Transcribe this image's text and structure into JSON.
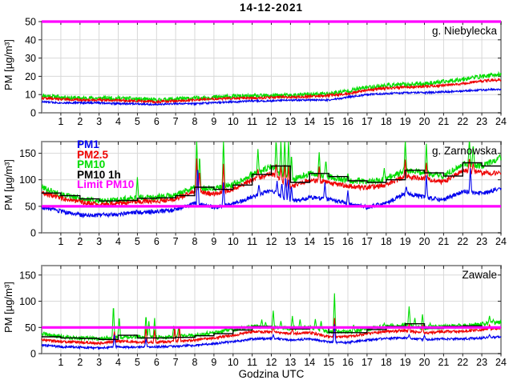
{
  "title": "14-12-2021",
  "xlabel": "Godzina UTC",
  "ylabel": "PM [µg/m³]",
  "colors": {
    "pm1": "#0000ee",
    "pm25": "#ee0000",
    "pm10": "#00dd00",
    "pm10_1h": "#000000",
    "limit": "#ff00ff",
    "grid": "#d8d8d8",
    "frame": "#8a8a8a",
    "tick": "#222222"
  },
  "legend": {
    "items": [
      {
        "label": "PM1",
        "color": "#0000ee"
      },
      {
        "label": "PM2.5",
        "color": "#ee0000"
      },
      {
        "label": "PM10",
        "color": "#00dd00"
      },
      {
        "label": "PM10 1h",
        "color": "#000000"
      },
      {
        "label": "Limit PM10",
        "color": "#ff00ff"
      }
    ]
  },
  "chart_data": [
    {
      "type": "line",
      "station": "g. Niebylecka",
      "xlim": [
        0,
        24
      ],
      "xticks": [
        1,
        2,
        3,
        4,
        5,
        6,
        7,
        8,
        9,
        10,
        11,
        12,
        13,
        14,
        15,
        16,
        17,
        18,
        19,
        20,
        21,
        22,
        23,
        24
      ],
      "ylim": [
        0,
        50
      ],
      "yticks": [
        0,
        10,
        20,
        30,
        40,
        50
      ],
      "limit": {
        "name": "Limit PM10",
        "value": 50,
        "color": "#ff00ff"
      },
      "series": [
        {
          "name": "PM10",
          "color": "#00dd00",
          "noise": 1.2,
          "seed": 11,
          "anchors": [
            9.5,
            8.5,
            8,
            8,
            8,
            7.5,
            7,
            7.5,
            8,
            8.5,
            9,
            9,
            9.5,
            9.5,
            10,
            10.5,
            12,
            14,
            15,
            15.5,
            16,
            17,
            18.5,
            20,
            21
          ],
          "spikes": []
        },
        {
          "name": "PM2.5",
          "color": "#ee0000",
          "noise": 0.7,
          "seed": 22,
          "anchors": [
            8,
            7.5,
            7,
            7,
            7,
            6.5,
            6,
            6.5,
            7,
            7.5,
            8,
            8,
            8.5,
            8.5,
            9,
            9.5,
            10.5,
            12.5,
            13.5,
            14,
            14.5,
            15,
            16,
            17.5,
            18
          ],
          "spikes": []
        },
        {
          "name": "PM1",
          "color": "#0000ee",
          "noise": 0.5,
          "seed": 33,
          "anchors": [
            6,
            5.5,
            5.5,
            5.5,
            5,
            5,
            4.5,
            5,
            5,
            5.5,
            6,
            6.5,
            6.5,
            7,
            7,
            7,
            8.5,
            10,
            10.5,
            11,
            11,
            11.5,
            12,
            12.5,
            13
          ],
          "spikes": []
        }
      ]
    },
    {
      "type": "line",
      "station": "g. Zarnowska",
      "xlim": [
        0,
        24
      ],
      "xticks": [
        1,
        2,
        3,
        4,
        5,
        6,
        7,
        8,
        9,
        10,
        11,
        12,
        13,
        14,
        15,
        16,
        17,
        18,
        19,
        20,
        21,
        22,
        23,
        24
      ],
      "ylim": [
        0,
        172
      ],
      "yticks": [
        0,
        50,
        100,
        150
      ],
      "limit": {
        "name": "Limit PM10",
        "value": 50,
        "color": "#ff00ff"
      },
      "hourly": {
        "name": "PM10 1h",
        "color": "#000000",
        "values": [
          75,
          70,
          64,
          60,
          61,
          65,
          66,
          70,
          86,
          82,
          90,
          110,
          126,
          95,
          112,
          106,
          98,
          95,
          100,
          118,
          113,
          107,
          132,
          126
        ]
      },
      "series": [
        {
          "name": "PM10",
          "color": "#00dd00",
          "noise": 6,
          "seed": 101,
          "anchors": [
            86,
            72,
            64,
            60,
            62,
            66,
            67,
            71,
            86,
            83,
            91,
            110,
            124,
            97,
            112,
            106,
            99,
            96,
            101,
            118,
            113,
            107,
            130,
            126,
            142
          ],
          "spikes": [
            [
              5.0,
              105
            ],
            [
              8.1,
              178
            ],
            [
              8.25,
              148
            ],
            [
              9.5,
              178
            ],
            [
              11.3,
              158
            ],
            [
              12.25,
              178
            ],
            [
              12.5,
              172
            ],
            [
              12.7,
              178
            ],
            [
              12.9,
              176
            ],
            [
              13.05,
              150
            ],
            [
              14.5,
              152
            ],
            [
              14.85,
              138
            ],
            [
              16.0,
              112
            ],
            [
              17.9,
              122
            ],
            [
              19.0,
              175
            ],
            [
              20.1,
              168
            ],
            [
              22.35,
              178
            ],
            [
              22.55,
              168
            ],
            [
              23.9,
              145
            ]
          ]
        },
        {
          "name": "PM2.5",
          "color": "#ee0000",
          "noise": 4.5,
          "seed": 102,
          "anchors": [
            76,
            66,
            58,
            54,
            56,
            59,
            60,
            64,
            79,
            73,
            82,
            99,
            112,
            86,
            100,
            94,
            88,
            85,
            90,
            106,
            102,
            96,
            118,
            113,
            112
          ],
          "spikes": [
            [
              8.1,
              140
            ],
            [
              8.25,
              118
            ],
            [
              9.5,
              130
            ],
            [
              11.3,
              120
            ],
            [
              12.25,
              132
            ],
            [
              12.5,
              125
            ],
            [
              12.7,
              128
            ],
            [
              12.9,
              126
            ],
            [
              14.5,
              125
            ],
            [
              19.0,
              138
            ],
            [
              20.1,
              132
            ],
            [
              22.35,
              142
            ],
            [
              22.55,
              132
            ],
            [
              23.9,
              115
            ]
          ]
        },
        {
          "name": "PM1",
          "color": "#0000ee",
          "noise": 4,
          "seed": 103,
          "anchors": [
            48,
            40,
            34,
            33,
            35,
            39,
            40,
            43,
            56,
            48,
            54,
            68,
            80,
            58,
            67,
            64,
            55,
            48,
            56,
            74,
            67,
            62,
            78,
            74,
            84
          ],
          "spikes": [
            [
              8.15,
              128
            ],
            [
              9.5,
              95
            ],
            [
              11.35,
              92
            ],
            [
              12.3,
              98
            ],
            [
              12.55,
              95
            ],
            [
              12.75,
              108
            ],
            [
              12.9,
              100
            ],
            [
              13.05,
              90
            ],
            [
              14.8,
              95
            ],
            [
              16.0,
              80
            ],
            [
              19.05,
              88
            ],
            [
              20.1,
              108
            ],
            [
              22.4,
              122
            ],
            [
              23.9,
              85
            ]
          ]
        }
      ]
    },
    {
      "type": "line",
      "station": "Zawale",
      "xlim": [
        0,
        24
      ],
      "xticks": [
        1,
        2,
        3,
        4,
        5,
        6,
        7,
        8,
        9,
        10,
        11,
        12,
        13,
        14,
        15,
        16,
        17,
        18,
        19,
        20,
        21,
        22,
        23,
        24
      ],
      "ylim": [
        0,
        168
      ],
      "yticks": [
        0,
        50,
        100,
        150
      ],
      "limit": {
        "name": "Limit PM10",
        "value": 50,
        "color": "#ff00ff"
      },
      "hourly": {
        "name": "PM10 1h",
        "color": "#000000",
        "values": [
          32,
          30,
          29,
          27,
          35,
          30,
          30,
          31,
          34,
          38,
          45,
          52,
          50,
          47,
          50,
          40,
          40,
          46,
          52,
          57,
          48,
          52,
          53,
          50
        ]
      },
      "series": [
        {
          "name": "PM10",
          "color": "#00dd00",
          "noise": 4,
          "seed": 201,
          "anchors": [
            38,
            32,
            30,
            28,
            32,
            32,
            31,
            32,
            35,
            40,
            46,
            52,
            50,
            48,
            50,
            42,
            41,
            47,
            52,
            55,
            49,
            52,
            52,
            56,
            60
          ],
          "spikes": [
            [
              3.75,
              95
            ],
            [
              4.05,
              72
            ],
            [
              5.45,
              75
            ],
            [
              5.6,
              62
            ],
            [
              5.9,
              68
            ],
            [
              6.9,
              53
            ],
            [
              7.15,
              50
            ],
            [
              9.6,
              46
            ],
            [
              11.5,
              65
            ],
            [
              11.7,
              60
            ],
            [
              12.1,
              82
            ],
            [
              12.5,
              62
            ],
            [
              13.1,
              72
            ],
            [
              13.5,
              65
            ],
            [
              14.3,
              66
            ],
            [
              14.6,
              62
            ],
            [
              15.3,
              115
            ],
            [
              16.3,
              55
            ],
            [
              17.9,
              58
            ],
            [
              19.2,
              90
            ],
            [
              19.5,
              68
            ],
            [
              19.9,
              75
            ],
            [
              20.3,
              58
            ],
            [
              21.8,
              57
            ],
            [
              23.4,
              72
            ],
            [
              23.6,
              65
            ]
          ]
        },
        {
          "name": "PM2.5",
          "color": "#ee0000",
          "noise": 2.5,
          "seed": 202,
          "anchors": [
            27,
            23,
            22,
            20,
            24,
            22,
            22,
            23,
            26,
            30,
            35,
            42,
            41,
            38,
            40,
            32,
            32,
            38,
            42,
            44,
            39,
            42,
            42,
            46,
            49
          ],
          "spikes": [
            [
              3.8,
              42
            ],
            [
              5.45,
              50
            ],
            [
              5.9,
              45
            ],
            [
              6.95,
              50
            ],
            [
              7.2,
              50
            ],
            [
              12.1,
              52
            ],
            [
              13.1,
              48
            ],
            [
              15.3,
              68
            ],
            [
              19.2,
              57
            ],
            [
              19.9,
              55
            ],
            [
              23.4,
              55
            ]
          ]
        },
        {
          "name": "PM1",
          "color": "#0000ee",
          "noise": 2,
          "seed": 203,
          "anchors": [
            16,
            13,
            12,
            11,
            13,
            12,
            13,
            14,
            16,
            19,
            23,
            28,
            29,
            26,
            28,
            22,
            21,
            26,
            29,
            30,
            27,
            28,
            28,
            30,
            32
          ],
          "spikes": [
            [
              3.8,
              36
            ],
            [
              5.45,
              30
            ],
            [
              12.1,
              36
            ],
            [
              15.3,
              56
            ],
            [
              19.2,
              36
            ],
            [
              20.0,
              35
            ],
            [
              23.4,
              36
            ]
          ]
        }
      ]
    }
  ]
}
